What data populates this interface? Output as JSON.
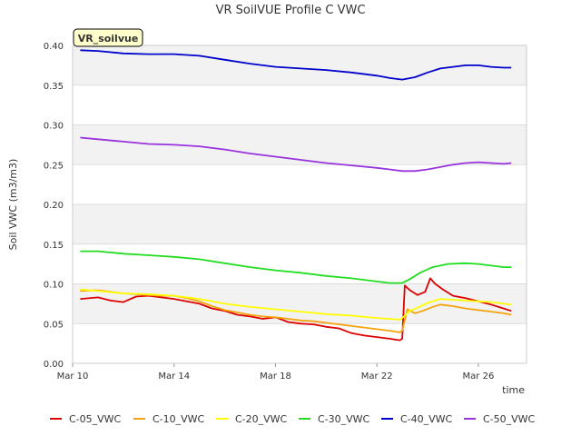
{
  "chart_data": {
    "type": "line",
    "title": "VR SoilVUE Profile C VWC",
    "xlabel": "time",
    "ylabel": "Soil VWC (m3/m3)",
    "badge": "VR_soilvue",
    "x_unit": "days (March)",
    "xlim": [
      10.0,
      27.9
    ],
    "ylim": [
      0.0,
      0.4
    ],
    "yticks": [
      "0.00",
      "0.05",
      "0.10",
      "0.15",
      "0.20",
      "0.25",
      "0.30",
      "0.35",
      "0.40"
    ],
    "xticks": [
      {
        "value": 10,
        "label": "Mar 10"
      },
      {
        "value": 14,
        "label": "Mar 14"
      },
      {
        "value": 18,
        "label": "Mar 18"
      },
      {
        "value": 22,
        "label": "Mar 22"
      },
      {
        "value": 26,
        "label": "Mar 26"
      }
    ],
    "grid": true,
    "legend_position": "bottom",
    "series": [
      {
        "name": "C-05_VWC",
        "color": "#dd0000",
        "x": [
          10.3,
          11.0,
          11.5,
          12.0,
          12.5,
          13.0,
          13.5,
          14.0,
          14.5,
          15.0,
          15.5,
          16.0,
          16.5,
          17.0,
          17.5,
          18.0,
          18.5,
          19.0,
          19.5,
          20.0,
          20.5,
          21.0,
          21.5,
          22.0,
          22.5,
          22.9,
          23.0,
          23.1,
          23.3,
          23.6,
          23.9,
          24.1,
          24.3,
          24.6,
          25.0,
          25.5,
          26.0,
          26.5,
          27.0,
          27.3
        ],
        "y": [
          0.081,
          0.083,
          0.079,
          0.077,
          0.084,
          0.085,
          0.083,
          0.081,
          0.078,
          0.075,
          0.069,
          0.066,
          0.061,
          0.059,
          0.056,
          0.058,
          0.052,
          0.05,
          0.049,
          0.046,
          0.044,
          0.038,
          0.035,
          0.033,
          0.031,
          0.029,
          0.031,
          0.098,
          0.092,
          0.086,
          0.09,
          0.107,
          0.1,
          0.093,
          0.085,
          0.082,
          0.078,
          0.074,
          0.069,
          0.066
        ]
      },
      {
        "name": "C-10_VWC",
        "color": "#f5a30a",
        "x": [
          10.3,
          11.0,
          11.5,
          12.0,
          12.5,
          13.0,
          13.5,
          14.0,
          14.5,
          15.0,
          15.5,
          16.0,
          16.5,
          17.0,
          17.5,
          18.0,
          18.5,
          19.0,
          19.5,
          20.0,
          20.5,
          21.0,
          21.5,
          22.0,
          22.5,
          22.9,
          23.0,
          23.2,
          23.5,
          23.8,
          24.2,
          24.5,
          25.0,
          25.5,
          26.0,
          26.5,
          27.0,
          27.3
        ],
        "y": [
          0.091,
          0.092,
          0.09,
          0.088,
          0.087,
          0.086,
          0.085,
          0.085,
          0.082,
          0.078,
          0.072,
          0.067,
          0.064,
          0.061,
          0.059,
          0.058,
          0.056,
          0.054,
          0.053,
          0.051,
          0.049,
          0.047,
          0.045,
          0.043,
          0.041,
          0.039,
          0.041,
          0.068,
          0.063,
          0.066,
          0.071,
          0.074,
          0.072,
          0.069,
          0.067,
          0.065,
          0.063,
          0.061
        ]
      },
      {
        "name": "C-20_VWC",
        "color": "#ffff00",
        "x": [
          10.3,
          11.0,
          12.0,
          13.0,
          14.0,
          15.0,
          16.0,
          17.0,
          18.0,
          19.0,
          20.0,
          21.0,
          22.0,
          22.9,
          23.0,
          23.3,
          23.6,
          24.0,
          24.5,
          25.0,
          25.5,
          26.0,
          26.5,
          27.0,
          27.3
        ],
        "y": [
          0.093,
          0.091,
          0.088,
          0.087,
          0.085,
          0.081,
          0.075,
          0.071,
          0.068,
          0.065,
          0.062,
          0.06,
          0.057,
          0.055,
          0.057,
          0.066,
          0.07,
          0.076,
          0.081,
          0.08,
          0.079,
          0.078,
          0.077,
          0.075,
          0.074
        ]
      },
      {
        "name": "C-30_VWC",
        "color": "#22dd22",
        "x": [
          10.3,
          11.0,
          12.0,
          13.0,
          14.0,
          15.0,
          16.0,
          17.0,
          18.0,
          19.0,
          20.0,
          21.0,
          22.0,
          22.5,
          23.0,
          23.3,
          23.7,
          24.2,
          24.8,
          25.5,
          26.0,
          26.5,
          27.0,
          27.3
        ],
        "y": [
          0.141,
          0.141,
          0.138,
          0.136,
          0.134,
          0.131,
          0.126,
          0.121,
          0.117,
          0.114,
          0.11,
          0.107,
          0.103,
          0.101,
          0.101,
          0.106,
          0.114,
          0.121,
          0.125,
          0.126,
          0.125,
          0.123,
          0.121,
          0.121
        ]
      },
      {
        "name": "C-40_VWC",
        "color": "#0000cc",
        "x": [
          10.3,
          11.0,
          12.0,
          13.0,
          14.0,
          15.0,
          16.0,
          17.0,
          18.0,
          19.0,
          20.0,
          21.0,
          22.0,
          22.5,
          23.0,
          23.5,
          24.0,
          24.5,
          25.0,
          25.5,
          26.0,
          26.5,
          27.0,
          27.3
        ],
        "y": [
          0.394,
          0.393,
          0.39,
          0.389,
          0.389,
          0.387,
          0.382,
          0.377,
          0.373,
          0.371,
          0.369,
          0.366,
          0.362,
          0.359,
          0.357,
          0.36,
          0.366,
          0.371,
          0.373,
          0.375,
          0.375,
          0.373,
          0.372,
          0.372
        ]
      },
      {
        "name": "C-50_VWC",
        "color": "#9933dd",
        "x": [
          10.3,
          11.0,
          12.0,
          13.0,
          14.0,
          15.0,
          16.0,
          17.0,
          18.0,
          19.0,
          20.0,
          21.0,
          22.0,
          22.5,
          23.0,
          23.5,
          24.0,
          24.5,
          25.0,
          25.5,
          26.0,
          26.5,
          27.0,
          27.3
        ],
        "y": [
          0.284,
          0.282,
          0.279,
          0.276,
          0.275,
          0.273,
          0.269,
          0.264,
          0.26,
          0.256,
          0.252,
          0.249,
          0.246,
          0.244,
          0.242,
          0.242,
          0.244,
          0.247,
          0.25,
          0.252,
          0.253,
          0.252,
          0.251,
          0.252
        ]
      }
    ]
  }
}
